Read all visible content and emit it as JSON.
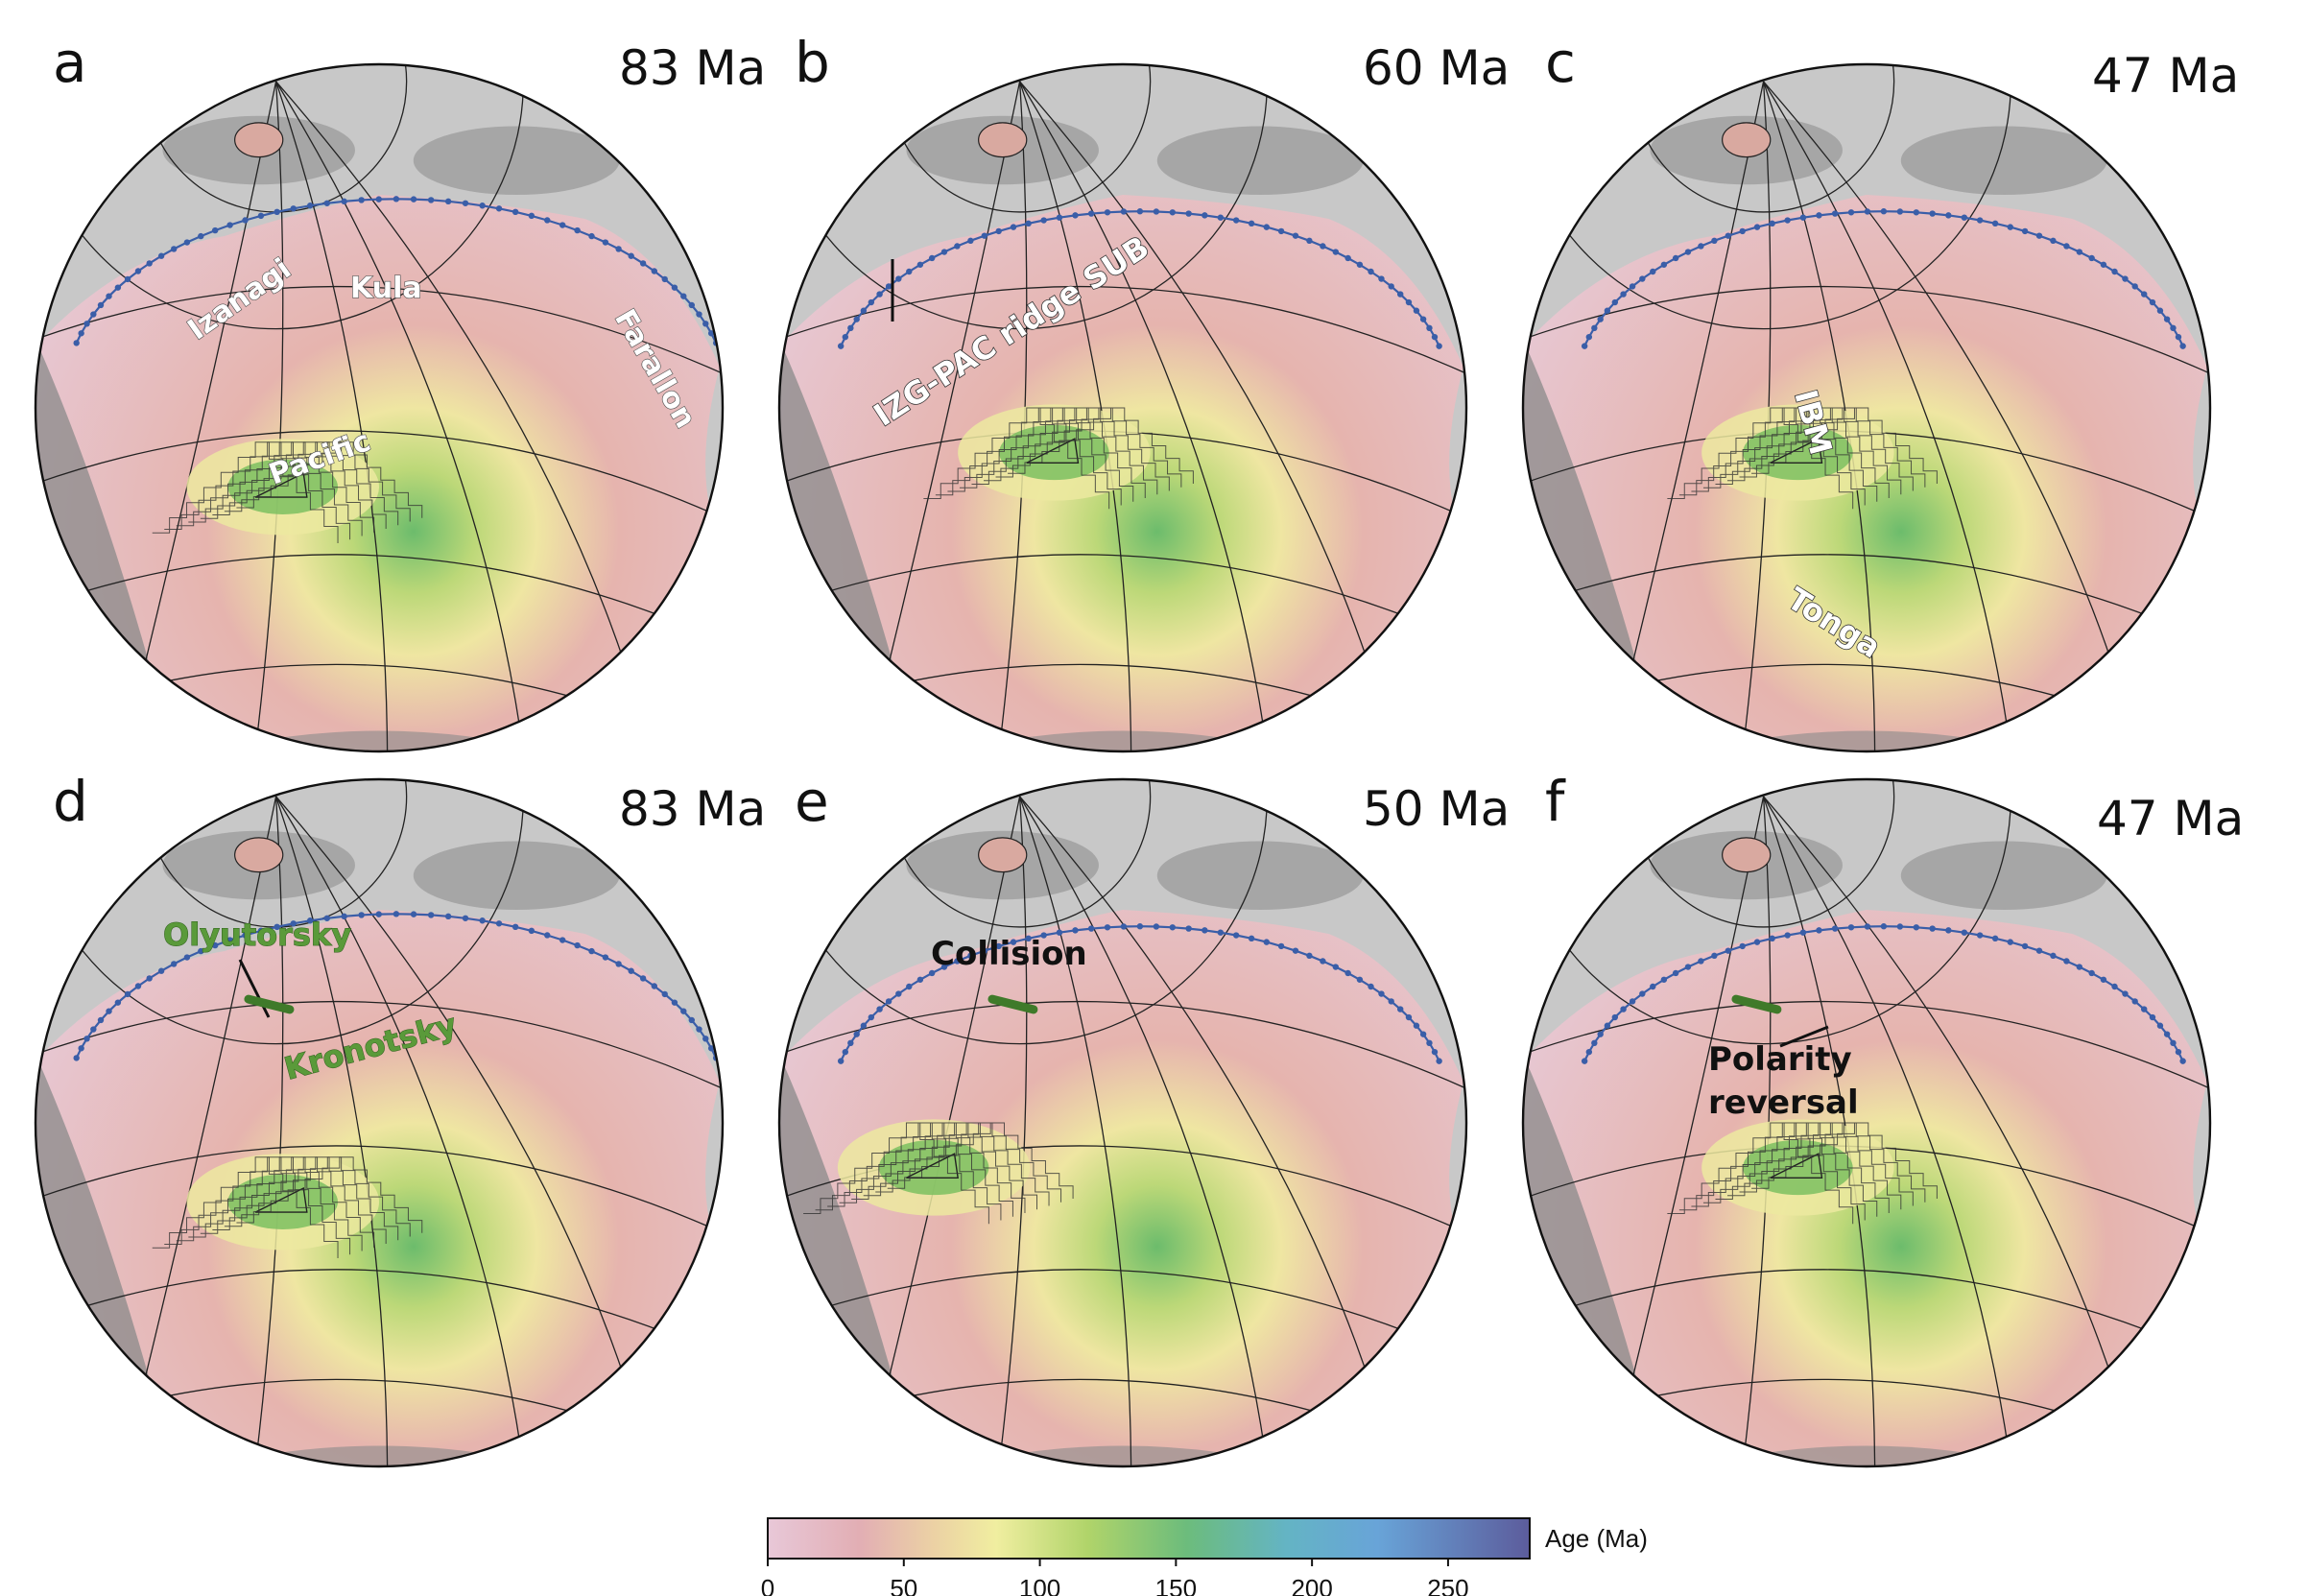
{
  "figure": {
    "panels": [
      {
        "letter": "a",
        "age": "83 Ma",
        "labels": [
          "Izanagi",
          "Kula",
          "Farallon",
          "Pacific"
        ]
      },
      {
        "letter": "b",
        "age": "60 Ma",
        "labels": [
          "IZG-PAC ridge SUB"
        ]
      },
      {
        "letter": "c",
        "age": "47 Ma",
        "labels": [
          "IBM",
          "Tonga"
        ]
      },
      {
        "letter": "d",
        "age": "83 Ma",
        "labels": [
          "Olyutorsky",
          "Kronotsky"
        ]
      },
      {
        "letter": "e",
        "age": "50 Ma",
        "labels": [
          "Collision"
        ]
      },
      {
        "letter": "f",
        "age": "47 Ma",
        "labels": [
          "Polarity",
          "reversal"
        ]
      }
    ]
  },
  "colorbar": {
    "title": "Age (Ma)",
    "ticks": [
      "0",
      "50",
      "100",
      "150",
      "200",
      "250"
    ],
    "range": [
      0,
      280
    ],
    "colors": [
      "#e8c8d8",
      "#e2aeb4",
      "#ecd2a4",
      "#f0eea0",
      "#b0d46a",
      "#6cbc7c",
      "#64b4c4",
      "#68a4d8",
      "#5c5c9c"
    ]
  },
  "map_colors": {
    "ocean_young": "#e7c3cf",
    "ocean_mid": "#e0a9ad",
    "ocean_old": "#ece9a0",
    "ocean_oldest": "#7cbf60",
    "land": "#c8c8c8",
    "shelf": "#8a8a8a",
    "subduction": "#3a5ea8"
  }
}
